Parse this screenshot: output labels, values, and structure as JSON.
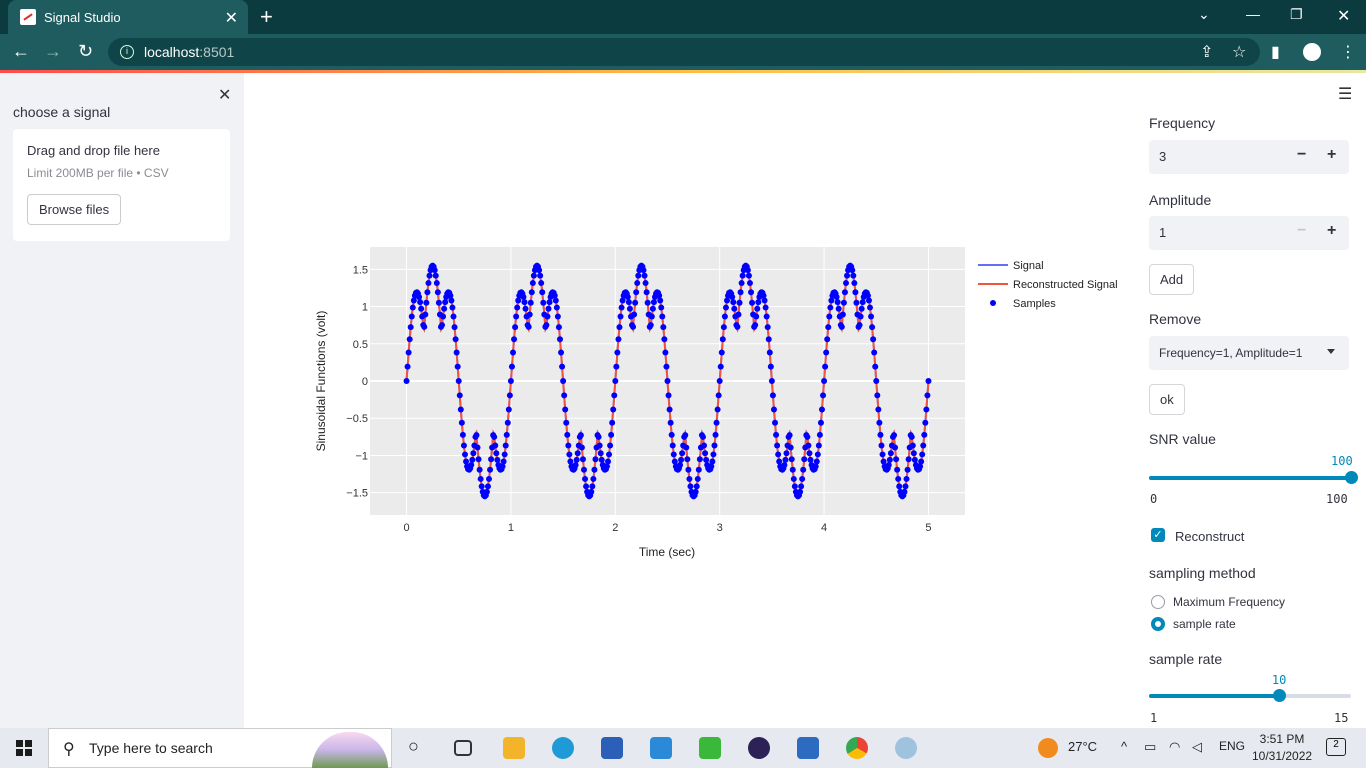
{
  "browser": {
    "tab_title": "Signal Studio",
    "url_host": "localhost",
    "url_port": ":8501"
  },
  "sidebar": {
    "label": "choose a signal",
    "drop_text": "Drag and drop file here",
    "limit_text": "Limit 200MB per file • CSV",
    "browse_label": "Browse files"
  },
  "controls": {
    "frequency_label": "Frequency",
    "frequency_value": "3",
    "amplitude_label": "Amplitude",
    "amplitude_value": "1",
    "add_label": "Add",
    "remove_label": "Remove",
    "remove_selected": "Frequency=1, Amplitude=1",
    "ok_label": "ok",
    "snr_label": "SNR value",
    "snr_value": 100,
    "snr_min": 0,
    "snr_max": 100,
    "reconstruct_label": "Reconstruct",
    "reconstruct_checked": true,
    "sampling_method_label": "sampling method",
    "method_options": [
      "Maximum Frequency",
      "sample rate"
    ],
    "method_selected": "sample rate",
    "sample_rate_label": "sample rate",
    "sample_rate_value": 10,
    "sample_rate_min": 1,
    "sample_rate_max": 15
  },
  "colors": {
    "accent": "#0089b9",
    "signal": "#636efa",
    "reconstructed": "#ef553b",
    "samples": "#0000ff"
  },
  "chart_data": {
    "type": "line",
    "xlabel": "Time (sec)",
    "ylabel": "Sinusoidal Functions (volt)",
    "xlim": [
      -0.35,
      5.35
    ],
    "ylim": [
      -1.8,
      1.8
    ],
    "x_ticks": [
      0,
      1,
      2,
      3,
      4,
      5
    ],
    "y_ticks": [
      -1.5,
      -1,
      -0.5,
      0,
      0.5,
      1,
      1.5
    ],
    "y_tick_labels": [
      "−1.5",
      "−1",
      "−0.5",
      "0",
      "0.5",
      "1",
      "1.5"
    ],
    "legend_position": "top-right",
    "legend": [
      "Signal",
      "Reconstructed Signal",
      "Samples"
    ],
    "signal": "sin(2π·1·t) + sin(2π·3·t) style composite (period 1 s), t from 0 to 5",
    "sample_interval": 0.01
  },
  "taskbar": {
    "search_placeholder": "Type here to search",
    "temperature": "27°C",
    "language": "ENG",
    "time": "3:51 PM",
    "date": "10/31/2022",
    "notification_count": "2"
  }
}
